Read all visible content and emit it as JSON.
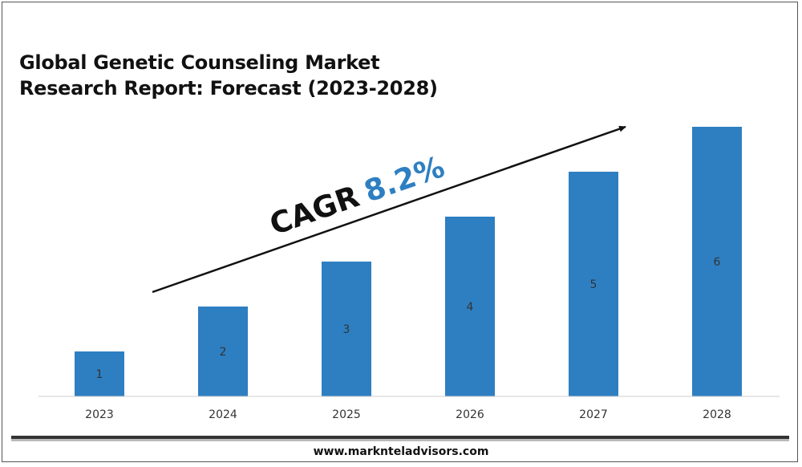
{
  "title_lines": [
    "Global Genetic Counseling Market",
    "Research Report: Forecast (2023-2028)"
  ],
  "annotation": {
    "cagr_label": "CAGR",
    "cagr_value": "8.2%"
  },
  "footer": "www.marknteladvisors.com",
  "colors": {
    "bar": "#2e7fc2",
    "cagr_value": "#2e7fc2",
    "text": "#111111",
    "axis": "#cccccc"
  },
  "chart_data": {
    "type": "bar",
    "categories": [
      "2023",
      "2024",
      "2025",
      "2026",
      "2027",
      "2028"
    ],
    "values": [
      1,
      2,
      3,
      4,
      5,
      6
    ],
    "data_labels": [
      "1",
      "2",
      "3",
      "4",
      "5",
      "6"
    ],
    "title": "Global Genetic Counseling Market Research Report: Forecast (2023-2028)",
    "xlabel": "",
    "ylabel": "",
    "ylim": [
      0,
      6
    ],
    "grid": false,
    "legend": "none"
  }
}
